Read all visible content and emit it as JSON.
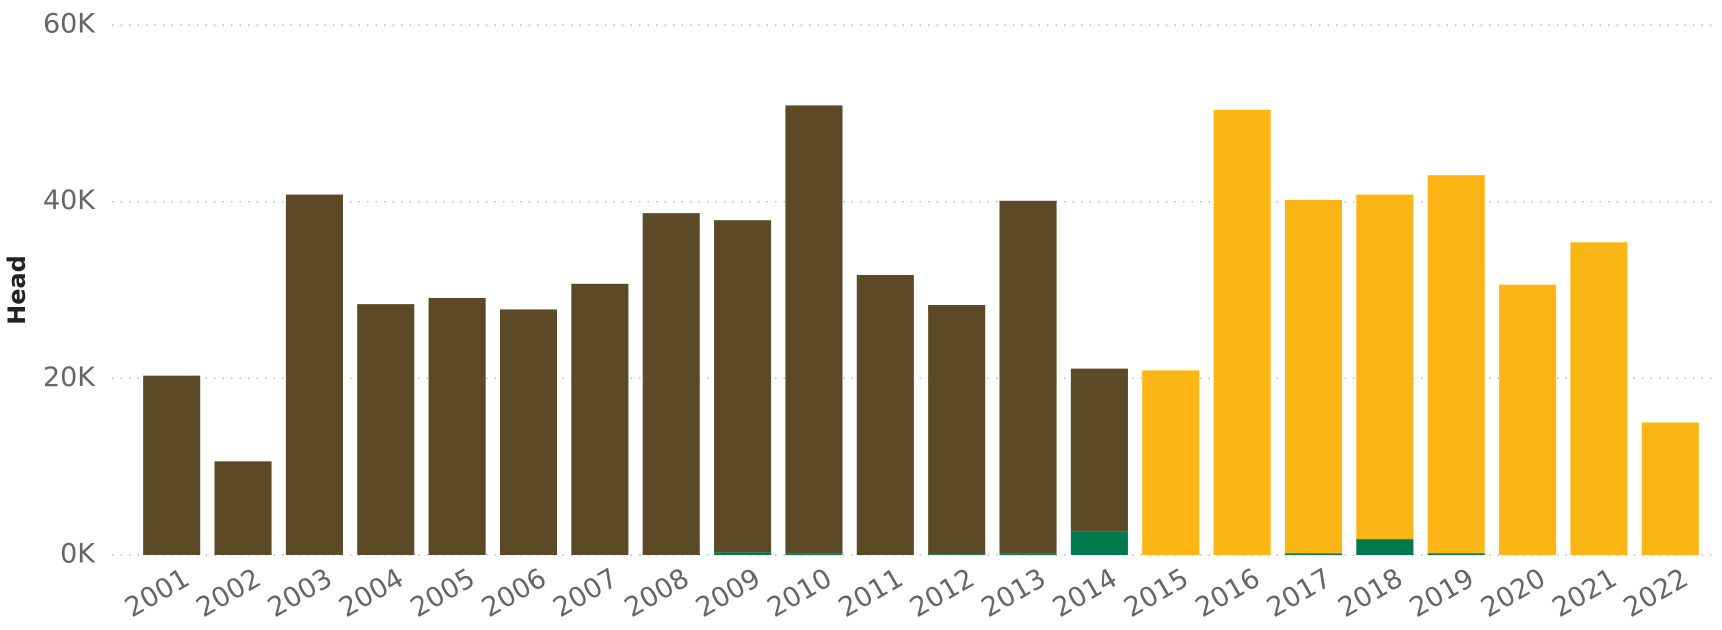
{
  "chart_data": {
    "type": "bar",
    "stacked": true,
    "y_label": "Head",
    "categories": [
      "2001",
      "2002",
      "2003",
      "2004",
      "2005",
      "2006",
      "2007",
      "2008",
      "2009",
      "2010",
      "2011",
      "2012",
      "2013",
      "2014",
      "2015",
      "2016",
      "2017",
      "2018",
      "2019",
      "2020",
      "2021",
      "2022"
    ],
    "series": [
      {
        "color": "#007a4d",
        "values": [
          null,
          null,
          null,
          null,
          null,
          null,
          null,
          null,
          300,
          200,
          null,
          100,
          200,
          2700,
          null,
          null,
          200,
          1800,
          200,
          null,
          null,
          null
        ]
      },
      {
        "color": "#5c4a27",
        "values": [
          20300,
          10600,
          40800,
          28400,
          29100,
          27800,
          30700,
          38700,
          37600,
          50700,
          31700,
          28200,
          39900,
          18400,
          null,
          null,
          null,
          null,
          null,
          null,
          null,
          null
        ]
      },
      {
        "color": "#fbb615",
        "values": [
          null,
          null,
          null,
          null,
          null,
          null,
          null,
          null,
          null,
          null,
          null,
          null,
          null,
          null,
          20900,
          50400,
          40000,
          39000,
          42800,
          30600,
          35400,
          15000
        ]
      }
    ],
    "ylim": [
      0,
      60000
    ],
    "yticks": [
      {
        "value": 0,
        "label": "0K"
      },
      {
        "value": 20000,
        "label": "20K"
      },
      {
        "value": 40000,
        "label": "40K"
      },
      {
        "value": 60000,
        "label": "60K"
      }
    ],
    "grid": true
  }
}
